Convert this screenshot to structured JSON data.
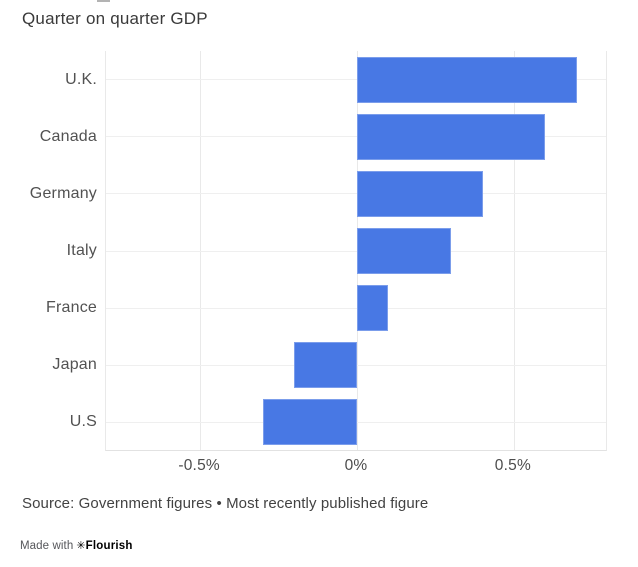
{
  "title": "Quarter on quarter GDP",
  "chart_data": {
    "type": "bar",
    "orientation": "horizontal",
    "title": "Quarter on quarter GDP",
    "xlabel": "",
    "ylabel": "",
    "unit": "%",
    "categories": [
      "U.K.",
      "Canada",
      "Germany",
      "Italy",
      "France",
      "Japan",
      "U.S"
    ],
    "values": [
      0.7,
      0.6,
      0.4,
      0.3,
      0.1,
      -0.2,
      -0.3
    ],
    "xlim": [
      -0.8,
      0.8
    ],
    "xticks": [
      {
        "value": -0.5,
        "label": "-0.5%"
      },
      {
        "value": 0,
        "label": "0%"
      },
      {
        "value": 0.5,
        "label": "0.5%"
      }
    ],
    "grid": true,
    "legend": "none",
    "bar_color": "#4878e4",
    "gridline_color": "#e9e9e9"
  },
  "source_note": "Source: Government figures • Most recently published figure",
  "credit": {
    "made_with": "Made with",
    "logo_glyph": "✳",
    "brand": "Flourish"
  }
}
